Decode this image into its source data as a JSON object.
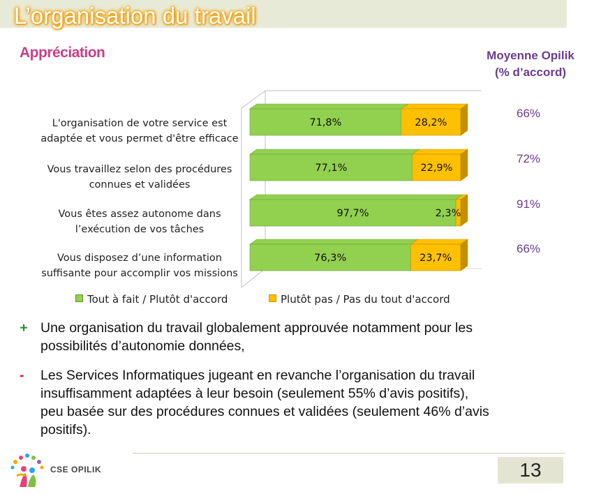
{
  "title": "L’organisation du travail",
  "subtitle": "Appréciation",
  "moyenne_header": {
    "line1": "Moyenne Opilik",
    "line2": "(% d’accord)"
  },
  "moyenne_values": [
    "66%",
    "72%",
    "91%",
    "66%"
  ],
  "colors": {
    "green": "#92d050",
    "yellow": "#ffc000",
    "title_glow": "#f29a00",
    "subtitle": "#c83f8a",
    "purple": "#6b3c8f"
  },
  "chart_data": {
    "type": "bar",
    "orientation": "horizontal",
    "stacked": true,
    "percent_stacked": true,
    "categories": [
      [
        "L'organisation de votre service est",
        "adaptée et vous permet d'être efficace"
      ],
      [
        "Vous travaillez selon des procédures",
        "connues et validées"
      ],
      [
        "Vous êtes assez autonome dans",
        "l’exécution de vos tâches"
      ],
      [
        "Vous disposez d’une information",
        "suffisante pour accomplir vos missions"
      ]
    ],
    "series": [
      {
        "name": "Tout à fait / Plutôt d'accord",
        "values": [
          71.8,
          77.1,
          97.7,
          76.3
        ],
        "labels": [
          "71,8%",
          "77,1%",
          "97,7%",
          "76,3%"
        ],
        "color": "#92d050"
      },
      {
        "name": "Plutôt pas / Pas du tout d'accord",
        "values": [
          28.2,
          22.9,
          2.3,
          23.7
        ],
        "labels": [
          "28,2%",
          "22,9%",
          "2,3%",
          "23,7%"
        ],
        "color": "#ffc000"
      }
    ],
    "xlim": [
      0,
      100
    ],
    "grid": false,
    "legend": "bottom"
  },
  "bullets": [
    {
      "symbol": "+",
      "color": "#2e8b2e",
      "lines": [
        "Une organisation du travail globalement approuvée notamment pour les",
        "possibilités d’autonomie données,"
      ]
    },
    {
      "symbol": "-",
      "color": "#d0201e",
      "lines": [
        "Les Services Informatiques jugeant en revanche l’organisation du travail",
        "insuffisamment adaptées à leur besoin (seulement 55% d’avis positifs),",
        "peu basée sur des procédures connues et validées (seulement 46% d’avis",
        "positifs)."
      ]
    }
  ],
  "footer": {
    "logo_text": "CSE OPILIK",
    "page_number": "13"
  }
}
